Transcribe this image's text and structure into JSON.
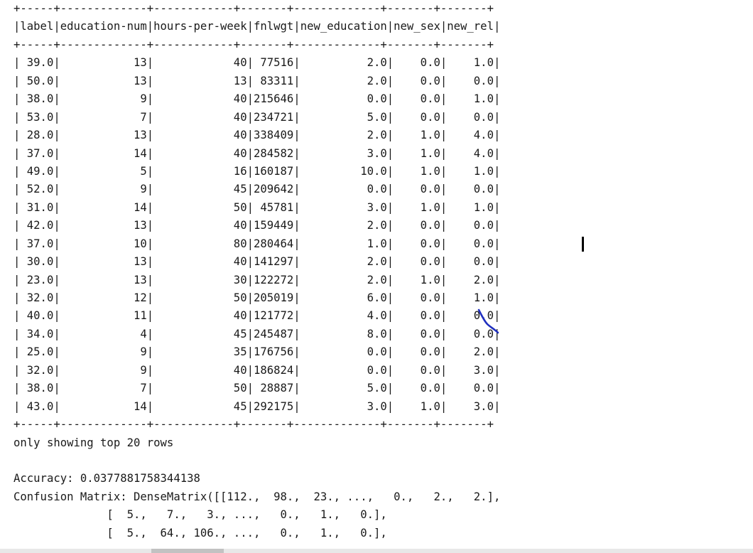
{
  "table": {
    "separator": "+-----+-------------+------------+-------+-------------+-------+-------+",
    "header": "|label|education-num|hours-per-week|fnlwgt|new_education|new_sex|new_rel|",
    "rows": [
      "| 39.0|           13|            40| 77516|          2.0|    0.0|    1.0|",
      "| 50.0|           13|            13| 83311|          2.0|    0.0|    0.0|",
      "| 38.0|            9|            40|215646|          0.0|    0.0|    1.0|",
      "| 53.0|            7|            40|234721|          5.0|    0.0|    0.0|",
      "| 28.0|           13|            40|338409|          2.0|    1.0|    4.0|",
      "| 37.0|           14|            40|284582|          3.0|    1.0|    4.0|",
      "| 49.0|            5|            16|160187|         10.0|    1.0|    1.0|",
      "| 52.0|            9|            45|209642|          0.0|    0.0|    0.0|",
      "| 31.0|           14|            50| 45781|          3.0|    1.0|    1.0|",
      "| 42.0|           13|            40|159449|          2.0|    0.0|    0.0|",
      "| 37.0|           10|            80|280464|          1.0|    0.0|    0.0|",
      "| 30.0|           13|            40|141297|          2.0|    0.0|    0.0|",
      "| 23.0|           13|            30|122272|          2.0|    1.0|    2.0|",
      "| 32.0|           12|            50|205019|          6.0|    0.0|    1.0|",
      "| 40.0|           11|            40|121772|          4.0|    0.0|    0.0|",
      "| 34.0|            4|            45|245487|          8.0|    0.0|    0.0|",
      "| 25.0|            9|            35|176756|          0.0|    0.0|    2.0|",
      "| 32.0|            9|            40|186824|          0.0|    0.0|    3.0|",
      "| 38.0|            7|            50| 28887|          5.0|    0.0|    0.0|",
      "| 43.0|           14|            45|292175|          3.0|    1.0|    3.0|"
    ]
  },
  "footer": {
    "rows_note": "only showing top 20 rows",
    "accuracy_line": "Accuracy: 0.0377881758344138",
    "confusion_line_1": "Confusion Matrix: DenseMatrix([[112.,  98.,  23., ...,   0.,   2.,   2.],",
    "confusion_line_2": "              [  5.,   7.,   3., ...,   0.,   1.,   0.],",
    "confusion_line_3": "              [  5.,  64., 106., ...,   0.,   1.,   0.],"
  },
  "colors": {
    "text": "#1a1a1a",
    "annotation_ink": "#1f2fbf",
    "scroll_track": "#e8e8e8",
    "scroll_thumb": "#c2c2c2"
  }
}
